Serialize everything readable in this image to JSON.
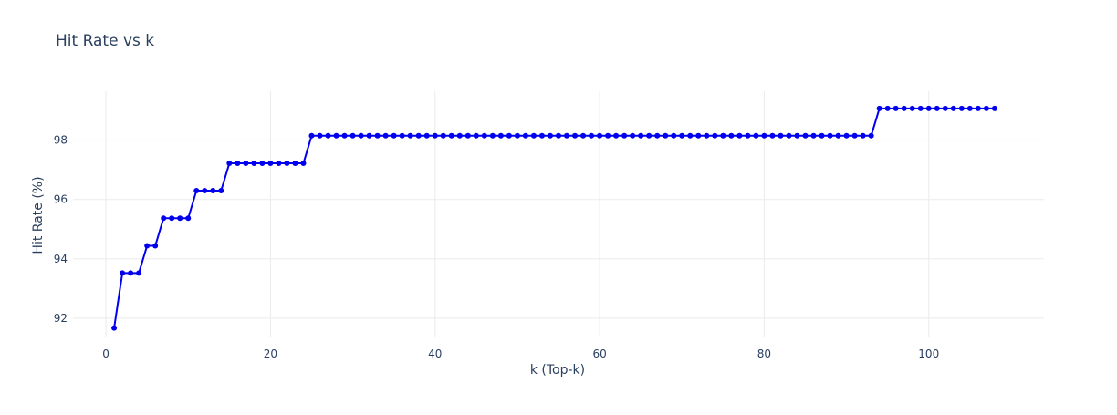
{
  "chart_data": {
    "type": "line",
    "title": "Hit Rate vs k",
    "xlabel": "k (Top-k)",
    "ylabel": "Hit Rate (%)",
    "xlim": [
      -4,
      114
    ],
    "ylim": [
      91.35,
      99.65
    ],
    "x_ticks": [
      0,
      20,
      40,
      60,
      80,
      100
    ],
    "x_tick_labels": [
      "0",
      "20",
      "40",
      "60",
      "80",
      "100"
    ],
    "y_ticks": [
      92,
      94,
      96,
      98
    ],
    "y_tick_labels": [
      "92",
      "94",
      "96",
      "98"
    ],
    "grid": true,
    "legend": "none",
    "steps": [
      {
        "k_from": 1,
        "k_to": 1,
        "hit_rate": 91.67
      },
      {
        "k_from": 2,
        "k_to": 4,
        "hit_rate": 93.52
      },
      {
        "k_from": 5,
        "k_to": 6,
        "hit_rate": 94.44
      },
      {
        "k_from": 7,
        "k_to": 10,
        "hit_rate": 95.37
      },
      {
        "k_from": 11,
        "k_to": 14,
        "hit_rate": 96.3
      },
      {
        "k_from": 15,
        "k_to": 24,
        "hit_rate": 97.22
      },
      {
        "k_from": 25,
        "k_to": 93,
        "hit_rate": 98.15
      },
      {
        "k_from": 94,
        "k_to": 108,
        "hit_rate": 99.07
      }
    ],
    "series": [
      {
        "name": "",
        "color": "#0000ee",
        "marker": "circle",
        "mode": "lines+markers"
      }
    ]
  }
}
